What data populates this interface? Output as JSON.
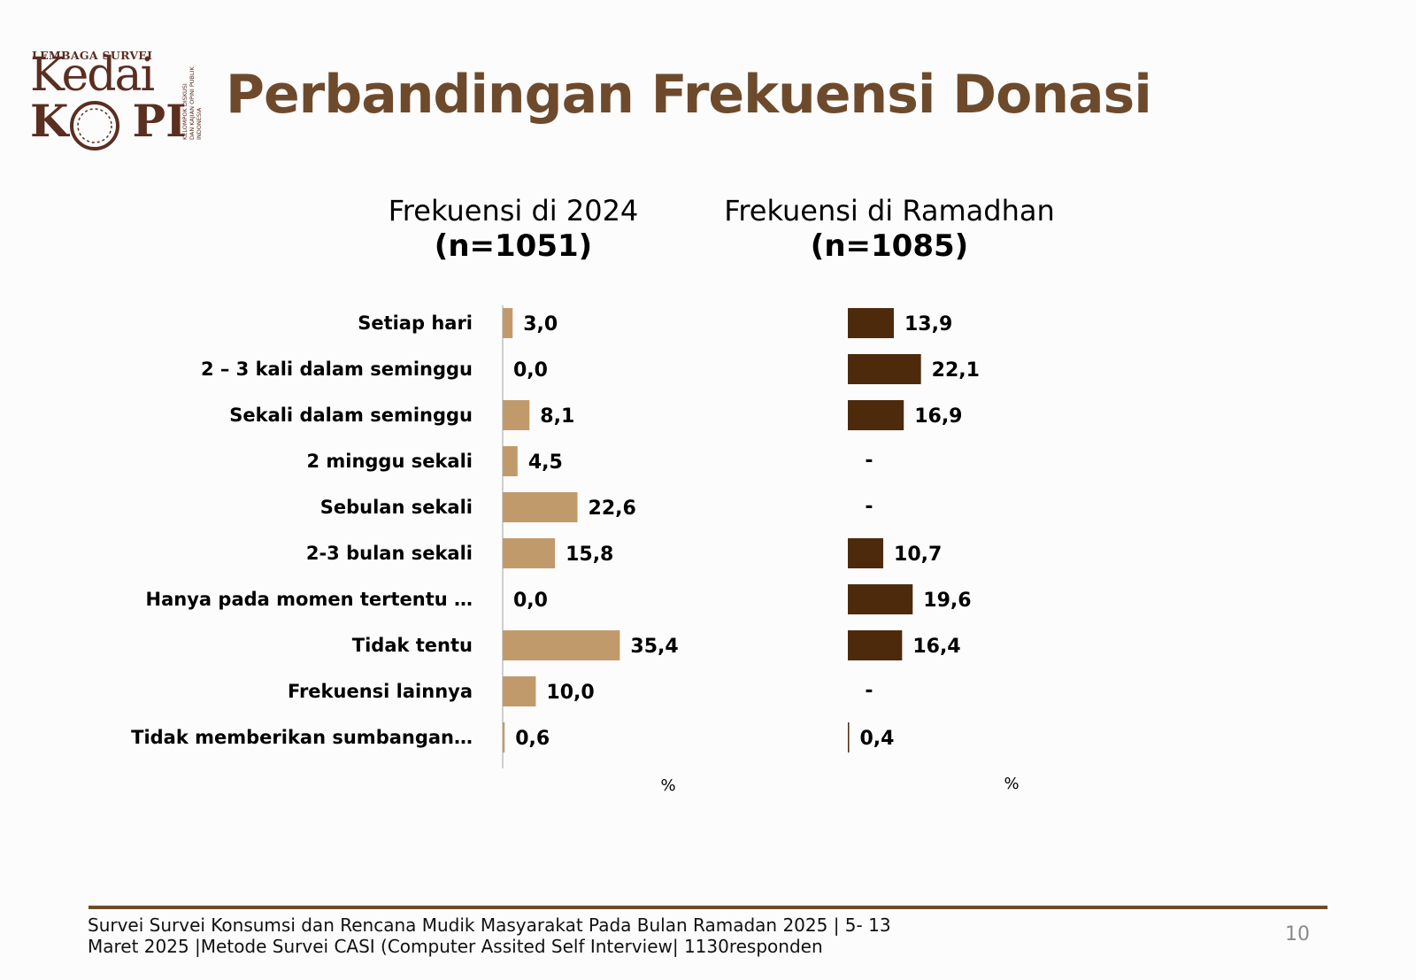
{
  "logo": {
    "top_text": "LEMBAGA SURVEI",
    "word1": "Kedai",
    "word2": "KOPI",
    "side_lines": [
      "KELOMPOK DISKUSI",
      "DAN KAJIAN OPINI PUBLIK",
      "INDONESIA"
    ]
  },
  "title": "Perbandingan Frekuensi Donasi",
  "left_header": {
    "line1": "Frekuensi di 2024",
    "line2": "(n=1051)"
  },
  "right_header": {
    "line1": "Frekuensi di Ramadhan",
    "line2": "(n=1085)"
  },
  "colors": {
    "series_2024": "#c19a6b",
    "series_ramadhan": "#4e2a0c",
    "title": "#6e4a2c"
  },
  "chart_data": {
    "type": "bar",
    "orientation": "horizontal",
    "categories": [
      "Setiap hari",
      "2 – 3 kali dalam seminggu",
      "Sekali dalam seminggu",
      "2 minggu sekali",
      "Sebulan sekali",
      "2-3 bulan sekali",
      "Hanya pada momen tertentu …",
      "Tidak tentu",
      "Frekuensi lainnya",
      "Tidak memberikan sumbangan…"
    ],
    "series": [
      {
        "name": "Frekuensi di 2024",
        "values": [
          3.0,
          0.0,
          8.1,
          4.5,
          22.6,
          15.8,
          0.0,
          35.4,
          10.0,
          0.6
        ],
        "labels": [
          "3,0",
          "0,0",
          "8,1",
          "4,5",
          "22,6",
          "15,8",
          "0,0",
          "35,4",
          "10,0",
          "0,6"
        ]
      },
      {
        "name": "Frekuensi di Ramadhan",
        "values": [
          13.9,
          22.1,
          16.9,
          null,
          null,
          10.7,
          19.6,
          16.4,
          null,
          0.4
        ],
        "labels": [
          "13,9",
          "22,1",
          "16,9",
          "-",
          "-",
          "10,7",
          "19,6",
          "16,4",
          "-",
          "0,4"
        ]
      }
    ],
    "unit_labels": [
      "%",
      "%"
    ],
    "legend": "none",
    "grid": false
  },
  "footer": {
    "line1": "Survei Survei Konsumsi dan Rencana Mudik Masyarakat Pada Bulan Ramadan 2025 | 5- 13",
    "line2": "Maret 2025 |Metode Survei CASI (Computer Assited Self Interview| 1130responden",
    "page": "10"
  }
}
